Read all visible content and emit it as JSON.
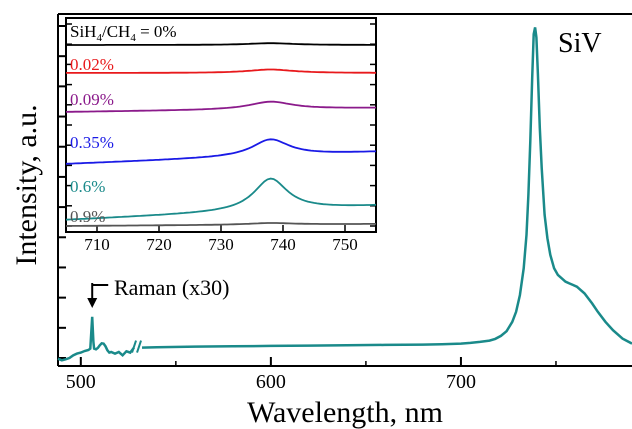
{
  "chart_data": [
    {
      "type": "line",
      "title": "",
      "xlabel": "Wavelength, nm",
      "ylabel": "Intensity, a.u.",
      "xlim": [
        488,
        790
      ],
      "ylim": [
        0,
        1.04
      ],
      "axis_break_at": 528,
      "x_ticks": [
        500,
        600,
        700
      ],
      "y_ticks_count": 12,
      "grid": false,
      "legend": "none",
      "line_color": "#1a8a8a",
      "series": [
        {
          "x": [
            488,
            490,
            492,
            494,
            496,
            498,
            500,
            502,
            504,
            505,
            505.5,
            506,
            506.6,
            507,
            508,
            509,
            510,
            511,
            512,
            513,
            514,
            515,
            516,
            518,
            520,
            522,
            524,
            526,
            528,
            540,
            560,
            580,
            600,
            620,
            640,
            660,
            680,
            690,
            700,
            705,
            710,
            715,
            718,
            721,
            724,
            727,
            729,
            731,
            733,
            734.5,
            735.5,
            736.5,
            737.5,
            738.3,
            739,
            739.7,
            740.5,
            741.5,
            742.5,
            744,
            745.5,
            747,
            749,
            751,
            753,
            755,
            757,
            759,
            761,
            763,
            765,
            767,
            769,
            772,
            776,
            780,
            785,
            790
          ],
          "y": [
            0.01,
            0.005,
            0.008,
            0.012,
            0.02,
            0.025,
            0.028,
            0.033,
            0.036,
            0.04,
            0.09,
            0.135,
            0.06,
            0.04,
            0.038,
            0.042,
            0.05,
            0.056,
            0.055,
            0.047,
            0.035,
            0.028,
            0.03,
            0.025,
            0.03,
            0.02,
            0.032,
            0.028,
            0.043,
            0.044,
            0.046,
            0.047,
            0.048,
            0.049,
            0.05,
            0.051,
            0.052,
            0.053,
            0.055,
            0.057,
            0.06,
            0.064,
            0.069,
            0.078,
            0.092,
            0.12,
            0.15,
            0.2,
            0.28,
            0.38,
            0.5,
            0.66,
            0.85,
            0.98,
            1.0,
            0.97,
            0.86,
            0.7,
            0.58,
            0.44,
            0.37,
            0.32,
            0.28,
            0.26,
            0.25,
            0.24,
            0.235,
            0.23,
            0.225,
            0.215,
            0.205,
            0.19,
            0.175,
            0.15,
            0.12,
            0.095,
            0.07,
            0.055
          ]
        }
      ],
      "annotations": {
        "peak_label": "SiV",
        "raman_label": "Raman (x30)",
        "raman_x": 506
      }
    },
    {
      "type": "line",
      "title": "",
      "xlim": [
        705,
        755
      ],
      "x_ticks": [
        710,
        720,
        730,
        740,
        750
      ],
      "y_ticks_count": 11,
      "grid": false,
      "legend": "inline-labels",
      "series": [
        {
          "name": "SiH4/CH4 = 0%",
          "color": "#000000",
          "baseline": 0.0,
          "amp": 0.13,
          "width": 4.5
        },
        {
          "name": "0.02%",
          "color": "#e8191c",
          "baseline": 0.0,
          "amp": 0.25,
          "width": 4.5
        },
        {
          "name": "0.09%",
          "color": "#8b1a8b",
          "baseline": 0.0,
          "amp": 0.55,
          "width": 4.2
        },
        {
          "name": "0.35%",
          "color": "#1a1ae6",
          "baseline": 0.0,
          "amp": 1.2,
          "width": 3.6
        },
        {
          "name": "0.6%",
          "color": "#1a8a8a",
          "baseline": 0.0,
          "amp": 2.3,
          "width": 3.3
        },
        {
          "name": "0.9%",
          "color": "#555555",
          "baseline": 0.0,
          "amp": 0.12,
          "width": 4.5
        }
      ],
      "labels": {
        "first_prefix": "SiH",
        "first_sub1": "4",
        "first_mid": "/CH",
        "first_sub2": "4",
        "first_suffix": " = 0%"
      }
    }
  ]
}
